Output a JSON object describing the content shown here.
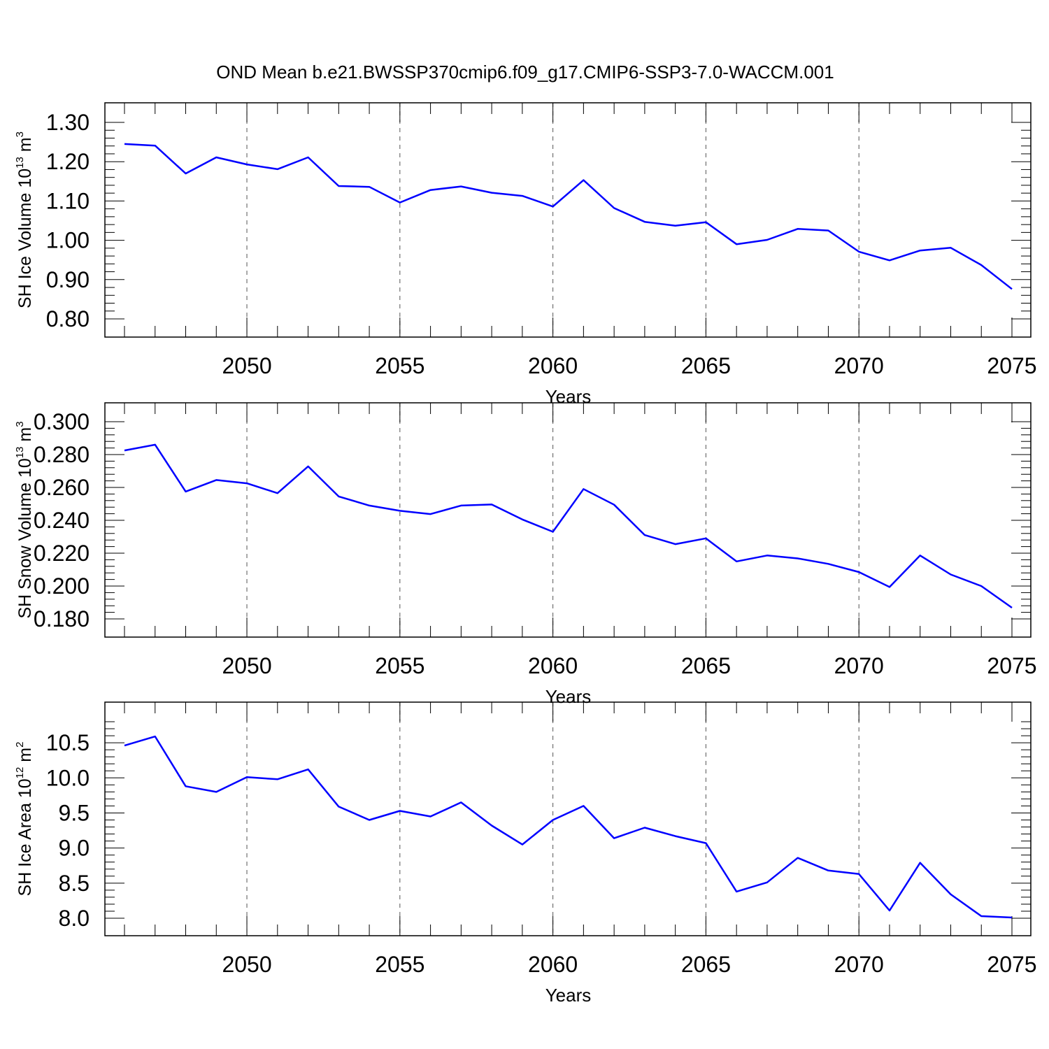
{
  "title": "OND Mean b.e21.BWSSP370cmip6.f09_g17.CMIP6-SSP3-7.0-WACCM.001",
  "chart_data": [
    {
      "type": "line",
      "xlabel": "Years",
      "ylabel": {
        "text": "SH Ice Volume 10",
        "exponent": "13",
        "unit": " m",
        "unit_exponent": "3"
      },
      "xlim": [
        1,
        30
      ],
      "ylim": [
        0.8,
        1.3
      ],
      "x_ticks": [
        5,
        10,
        15,
        20,
        25,
        30
      ],
      "x_tick_labels": [
        "2050",
        "2055",
        "2060",
        "2065",
        "2070",
        "2075"
      ],
      "y_ticks": [
        0.8,
        0.9,
        1.0,
        1.1,
        1.2,
        1.3
      ],
      "y_tick_labels": [
        "0.80",
        "0.90",
        "1.00",
        "1.10",
        "1.20",
        "1.30"
      ],
      "grid": "vertical dashed at labeled x ticks",
      "line_color": "#0000ff",
      "x": [
        1,
        2,
        3,
        4,
        5,
        6,
        7,
        8,
        9,
        10,
        11,
        12,
        13,
        14,
        15,
        16,
        17,
        18,
        19,
        20,
        21,
        22,
        23,
        24,
        25,
        26,
        27,
        28,
        29,
        30
      ],
      "values": [
        1.245,
        1.241,
        1.17,
        1.211,
        1.193,
        1.181,
        1.211,
        1.138,
        1.136,
        1.096,
        1.128,
        1.137,
        1.121,
        1.113,
        1.086,
        1.153,
        1.082,
        1.047,
        1.037,
        1.046,
        0.99,
        1.001,
        1.029,
        1.025,
        0.971,
        0.949,
        0.974,
        0.981,
        0.937,
        0.876
      ]
    },
    {
      "type": "line",
      "xlabel": "Years",
      "ylabel": {
        "text": "SH Snow Volume 10",
        "exponent": "13",
        "unit": " m",
        "unit_exponent": "3"
      },
      "xlim": [
        1,
        30
      ],
      "ylim": [
        0.18,
        0.3
      ],
      "x_ticks": [
        5,
        10,
        15,
        20,
        25,
        30
      ],
      "x_tick_labels": [
        "2050",
        "2055",
        "2060",
        "2065",
        "2070",
        "2075"
      ],
      "y_ticks": [
        0.18,
        0.2,
        0.22,
        0.24,
        0.26,
        0.28,
        0.3
      ],
      "y_tick_labels": [
        "0.180",
        "0.200",
        "0.220",
        "0.240",
        "0.260",
        "0.280",
        "0.300"
      ],
      "grid": "vertical dashed at labeled x ticks",
      "line_color": "#0000ff",
      "x": [
        1,
        2,
        3,
        4,
        5,
        6,
        7,
        8,
        9,
        10,
        11,
        12,
        13,
        14,
        15,
        16,
        17,
        18,
        19,
        20,
        21,
        22,
        23,
        24,
        25,
        26,
        27,
        28,
        29,
        30
      ],
      "values": [
        0.2825,
        0.286,
        0.2575,
        0.2645,
        0.2625,
        0.2565,
        0.2728,
        0.2545,
        0.249,
        0.2458,
        0.2438,
        0.249,
        0.2496,
        0.2405,
        0.233,
        0.259,
        0.2495,
        0.231,
        0.2255,
        0.229,
        0.215,
        0.2186,
        0.2168,
        0.2135,
        0.2085,
        0.1994,
        0.2186,
        0.207,
        0.2,
        0.1868
      ]
    },
    {
      "type": "line",
      "xlabel": "Years",
      "ylabel": {
        "text": "SH Ice Area 10",
        "exponent": "12",
        "unit": " m",
        "unit_exponent": "2"
      },
      "xlim": [
        1,
        30
      ],
      "ylim": [
        8.0,
        10.8
      ],
      "x_ticks": [
        5,
        10,
        15,
        20,
        25,
        30
      ],
      "x_tick_labels": [
        "2050",
        "2055",
        "2060",
        "2065",
        "2070",
        "2075"
      ],
      "y_ticks": [
        8.0,
        8.5,
        9.0,
        9.5,
        10.0,
        10.5
      ],
      "y_tick_labels": [
        "8.0",
        "8.5",
        "9.0",
        "9.5",
        "10.0",
        "10.5"
      ],
      "grid": "vertical dashed at labeled x ticks",
      "line_color": "#0000ff",
      "x": [
        1,
        2,
        3,
        4,
        5,
        6,
        7,
        8,
        9,
        10,
        11,
        12,
        13,
        14,
        15,
        16,
        17,
        18,
        19,
        20,
        21,
        22,
        23,
        24,
        25,
        26,
        27,
        28,
        29,
        30
      ],
      "values": [
        10.46,
        10.59,
        9.88,
        9.8,
        10.01,
        9.98,
        10.12,
        9.59,
        9.4,
        9.53,
        9.45,
        9.65,
        9.32,
        9.05,
        9.4,
        9.6,
        9.14,
        9.29,
        9.17,
        9.07,
        8.38,
        8.51,
        8.86,
        8.68,
        8.63,
        8.11,
        8.79,
        8.34,
        8.03,
        8.01
      ]
    }
  ]
}
